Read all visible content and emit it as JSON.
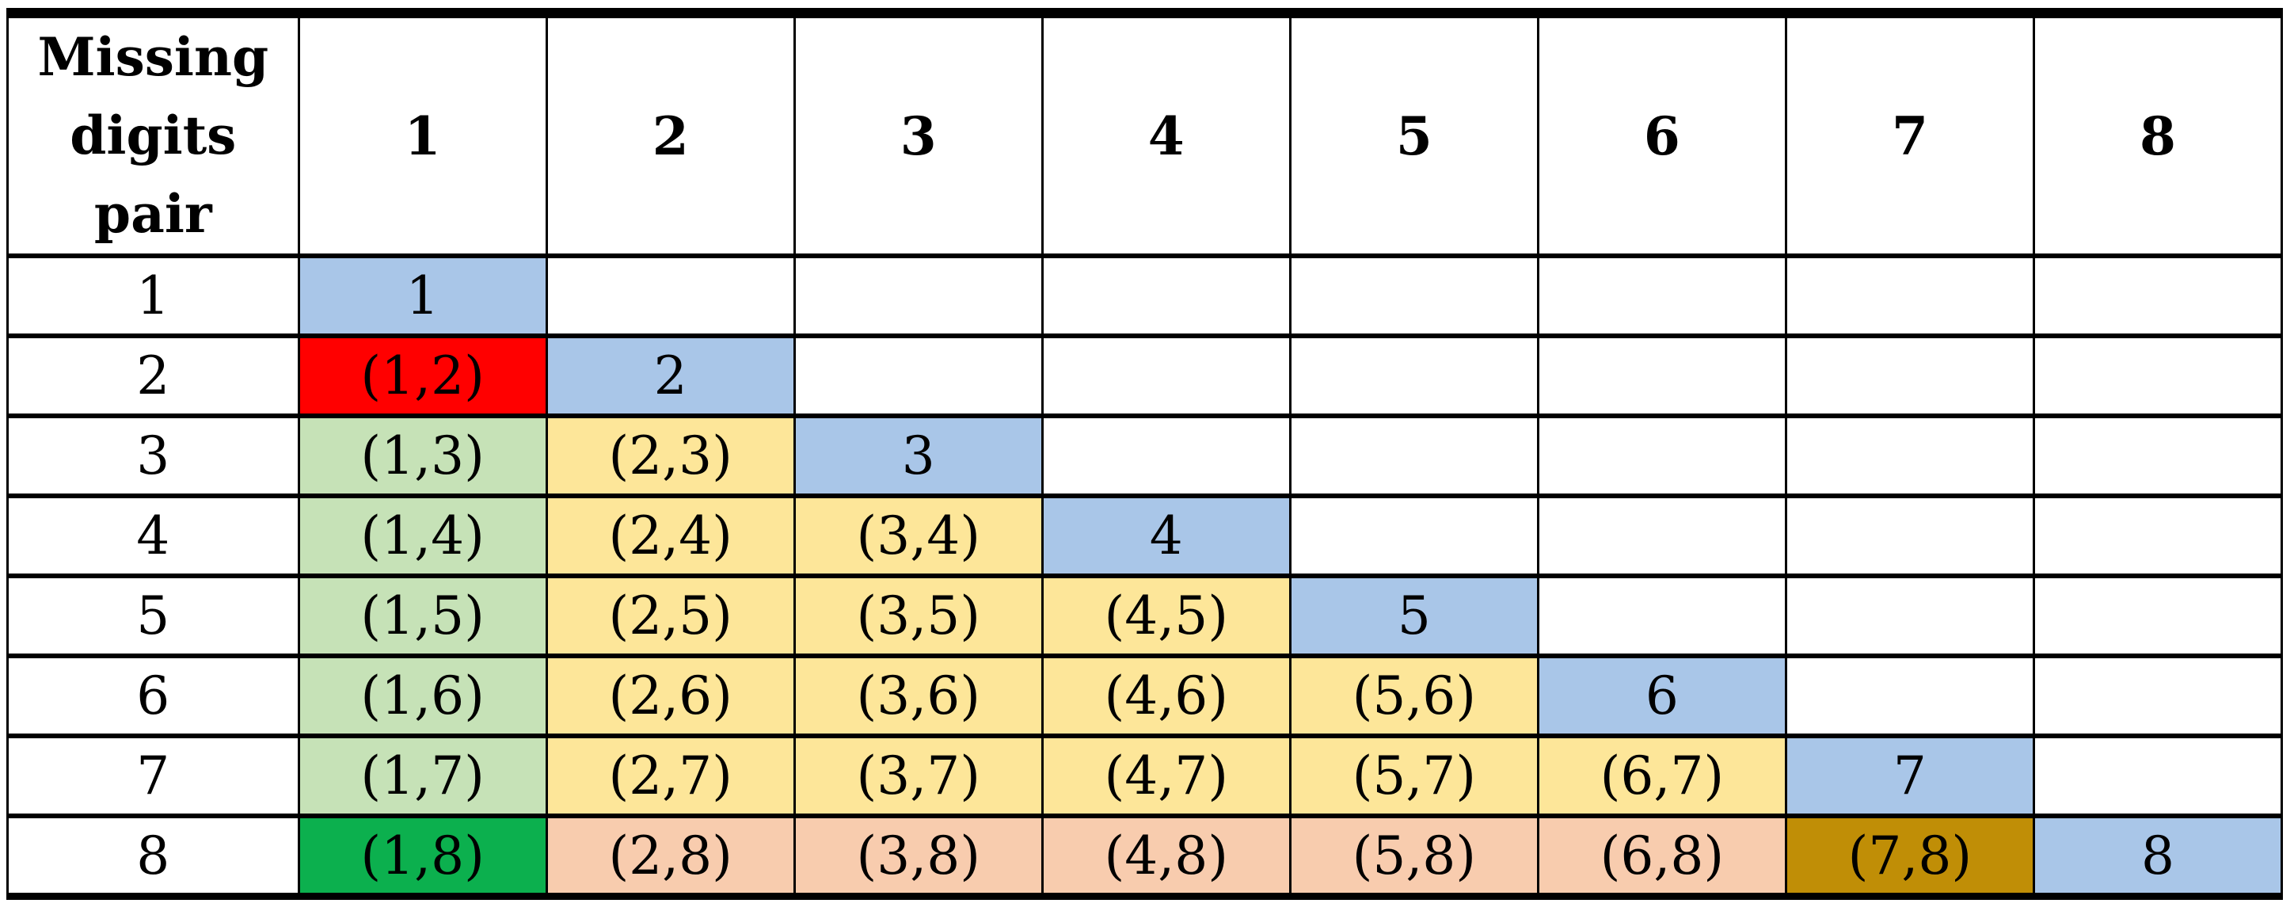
{
  "colors": {
    "diagonal_blue": "#A9C6E8",
    "red": "#FF0000",
    "light_green": "#C6E2B7",
    "yellow": "#FDE699",
    "salmon": "#F8CCAE",
    "bright_green": "#0CB04E",
    "dark_gold": "#C08E06",
    "border": "#000000",
    "background": "#FFFFFF",
    "text": "#000000"
  },
  "table": {
    "corner_header": "Missing\ndigits\npair",
    "column_headers": [
      "1",
      "2",
      "3",
      "4",
      "5",
      "6",
      "7",
      "8"
    ],
    "rows": [
      {
        "header": "1",
        "cells": [
          {
            "text": "1",
            "bg": "diagonal_blue"
          },
          {
            "text": "",
            "bg": "none"
          },
          {
            "text": "",
            "bg": "none"
          },
          {
            "text": "",
            "bg": "none"
          },
          {
            "text": "",
            "bg": "none"
          },
          {
            "text": "",
            "bg": "none"
          },
          {
            "text": "",
            "bg": "none"
          },
          {
            "text": "",
            "bg": "none"
          }
        ]
      },
      {
        "header": "2",
        "cells": [
          {
            "text": "(1,2)",
            "bg": "red"
          },
          {
            "text": "2",
            "bg": "diagonal_blue"
          },
          {
            "text": "",
            "bg": "none"
          },
          {
            "text": "",
            "bg": "none"
          },
          {
            "text": "",
            "bg": "none"
          },
          {
            "text": "",
            "bg": "none"
          },
          {
            "text": "",
            "bg": "none"
          },
          {
            "text": "",
            "bg": "none"
          }
        ]
      },
      {
        "header": "3",
        "cells": [
          {
            "text": "(1,3)",
            "bg": "light_green"
          },
          {
            "text": "(2,3)",
            "bg": "yellow"
          },
          {
            "text": "3",
            "bg": "diagonal_blue"
          },
          {
            "text": "",
            "bg": "none"
          },
          {
            "text": "",
            "bg": "none"
          },
          {
            "text": "",
            "bg": "none"
          },
          {
            "text": "",
            "bg": "none"
          },
          {
            "text": "",
            "bg": "none"
          }
        ]
      },
      {
        "header": "4",
        "cells": [
          {
            "text": "(1,4)",
            "bg": "light_green"
          },
          {
            "text": "(2,4)",
            "bg": "yellow"
          },
          {
            "text": "(3,4)",
            "bg": "yellow"
          },
          {
            "text": "4",
            "bg": "diagonal_blue"
          },
          {
            "text": "",
            "bg": "none"
          },
          {
            "text": "",
            "bg": "none"
          },
          {
            "text": "",
            "bg": "none"
          },
          {
            "text": "",
            "bg": "none"
          }
        ]
      },
      {
        "header": "5",
        "cells": [
          {
            "text": "(1,5)",
            "bg": "light_green"
          },
          {
            "text": "(2,5)",
            "bg": "yellow"
          },
          {
            "text": "(3,5)",
            "bg": "yellow"
          },
          {
            "text": "(4,5)",
            "bg": "yellow"
          },
          {
            "text": "5",
            "bg": "diagonal_blue"
          },
          {
            "text": "",
            "bg": "none"
          },
          {
            "text": "",
            "bg": "none"
          },
          {
            "text": "",
            "bg": "none"
          }
        ]
      },
      {
        "header": "6",
        "cells": [
          {
            "text": "(1,6)",
            "bg": "light_green"
          },
          {
            "text": "(2,6)",
            "bg": "yellow"
          },
          {
            "text": "(3,6)",
            "bg": "yellow"
          },
          {
            "text": "(4,6)",
            "bg": "yellow"
          },
          {
            "text": "(5,6)",
            "bg": "yellow"
          },
          {
            "text": "6",
            "bg": "diagonal_blue"
          },
          {
            "text": "",
            "bg": "none"
          },
          {
            "text": "",
            "bg": "none"
          }
        ]
      },
      {
        "header": "7",
        "cells": [
          {
            "text": "(1,7)",
            "bg": "light_green"
          },
          {
            "text": "(2,7)",
            "bg": "yellow"
          },
          {
            "text": "(3,7)",
            "bg": "yellow"
          },
          {
            "text": "(4,7)",
            "bg": "yellow"
          },
          {
            "text": "(5,7)",
            "bg": "yellow"
          },
          {
            "text": "(6,7)",
            "bg": "yellow"
          },
          {
            "text": "7",
            "bg": "diagonal_blue"
          },
          {
            "text": "",
            "bg": "none"
          }
        ]
      },
      {
        "header": "8",
        "cells": [
          {
            "text": "(1,8)",
            "bg": "bright_green"
          },
          {
            "text": "(2,8)",
            "bg": "salmon"
          },
          {
            "text": "(3,8)",
            "bg": "salmon"
          },
          {
            "text": "(4,8)",
            "bg": "salmon"
          },
          {
            "text": "(5,8)",
            "bg": "salmon"
          },
          {
            "text": "(6,8)",
            "bg": "salmon"
          },
          {
            "text": "(7,8)",
            "bg": "dark_gold"
          },
          {
            "text": "8",
            "bg": "diagonal_blue"
          }
        ]
      }
    ]
  }
}
